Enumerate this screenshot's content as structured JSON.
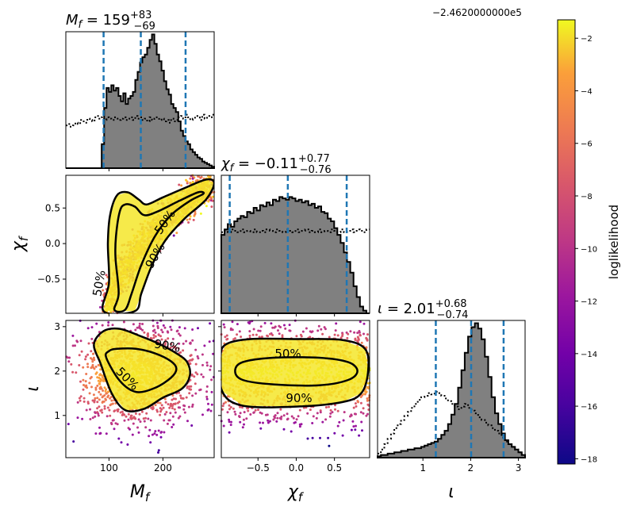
{
  "figure": {
    "offset_text": "−2.4620000000e5",
    "colorbar_label": "loglikelihood"
  },
  "chart_data": {
    "type": "corner",
    "parameters": [
      {
        "key": "Mf",
        "symbol": "M",
        "sub": "f",
        "range": [
          20,
          295
        ],
        "ticks": [
          100,
          200
        ],
        "tick_labels": [
          "100",
          "200"
        ],
        "median": "159",
        "plus": "+83",
        "minus": "−69",
        "quantiles": [
          90,
          159,
          242
        ],
        "title_prefix": "",
        "title_eq": " = "
      },
      {
        "key": "chif",
        "symbol": "χ",
        "sub": "f",
        "range": [
          -0.98,
          0.96
        ],
        "ticks": [
          -0.5,
          0.0,
          0.5
        ],
        "tick_labels": [
          "−0.5",
          "0.0",
          "0.5"
        ],
        "median": "−0.11",
        "plus": "+0.77",
        "minus": "−0.76",
        "quantiles": [
          -0.87,
          -0.11,
          0.66
        ],
        "title_prefix": "",
        "title_eq": " = "
      },
      {
        "key": "iota",
        "symbol": "ι",
        "sub": "",
        "range": [
          0.05,
          3.14
        ],
        "ticks": [
          1,
          2,
          3
        ],
        "tick_labels": [
          "1",
          "2",
          "3"
        ],
        "median": "2.01",
        "plus": "+0.68",
        "minus": "−0.74",
        "quantiles": [
          1.27,
          2.01,
          2.69
        ],
        "title_prefix": "",
        "title_eq": " = "
      }
    ],
    "histograms": [
      {
        "param": "Mf",
        "bins": [
          20,
          295
        ],
        "posterior": [
          0,
          0,
          0,
          0,
          0,
          0,
          0,
          0,
          0,
          0,
          0,
          0,
          0,
          0,
          0,
          0.18,
          0.45,
          0.6,
          0.57,
          0.62,
          0.58,
          0.6,
          0.54,
          0.5,
          0.56,
          0.48,
          0.52,
          0.54,
          0.57,
          0.66,
          0.72,
          0.79,
          0.83,
          0.85,
          0.9,
          0.96,
          1.0,
          0.93,
          0.85,
          0.8,
          0.73,
          0.65,
          0.59,
          0.55,
          0.48,
          0.45,
          0.42,
          0.35,
          0.28,
          0.24,
          0.2,
          0.18,
          0.14,
          0.12,
          0.1,
          0.08,
          0.07,
          0.05,
          0.04,
          0.03,
          0.02,
          0.01
        ],
        "prior": [
          0.32,
          0.33,
          0.31,
          0.32,
          0.34,
          0.33,
          0.36,
          0.35,
          0.34,
          0.37,
          0.36,
          0.35,
          0.38,
          0.39,
          0.37,
          0.38,
          0.36,
          0.38,
          0.37,
          0.36,
          0.38,
          0.37,
          0.36,
          0.37,
          0.38,
          0.36,
          0.37,
          0.38,
          0.36,
          0.39,
          0.37,
          0.38,
          0.36,
          0.37,
          0.35,
          0.38,
          0.36,
          0.37,
          0.38,
          0.36,
          0.37,
          0.35,
          0.36,
          0.34,
          0.37,
          0.35,
          0.36,
          0.38,
          0.39,
          0.37,
          0.4,
          0.38,
          0.36,
          0.37,
          0.39,
          0.38,
          0.36,
          0.4,
          0.37,
          0.39,
          0.38,
          0.4
        ]
      },
      {
        "param": "chif",
        "bins": [
          -0.98,
          0.96
        ],
        "posterior": [
          0.58,
          0.62,
          0.66,
          0.64,
          0.68,
          0.7,
          0.72,
          0.71,
          0.75,
          0.74,
          0.78,
          0.76,
          0.8,
          0.79,
          0.82,
          0.8,
          0.84,
          0.83,
          0.86,
          0.85,
          0.84,
          0.86,
          0.85,
          0.83,
          0.84,
          0.82,
          0.83,
          0.8,
          0.81,
          0.78,
          0.79,
          0.75,
          0.74,
          0.7,
          0.68,
          0.63,
          0.58,
          0.52,
          0.45,
          0.38,
          0.3,
          0.2,
          0.12,
          0.05,
          0.02,
          0
        ],
        "prior": [
          0.6,
          0.61,
          0.6,
          0.62,
          0.61,
          0.6,
          0.62,
          0.6,
          0.61,
          0.6,
          0.62,
          0.6,
          0.61,
          0.6,
          0.62,
          0.61,
          0.6,
          0.62,
          0.61,
          0.6,
          0.62,
          0.61,
          0.6,
          0.62,
          0.6,
          0.61,
          0.62,
          0.6,
          0.61,
          0.6,
          0.62,
          0.6,
          0.61,
          0.6,
          0.62,
          0.61,
          0.6,
          0.62,
          0.6,
          0.61,
          0.62,
          0.6,
          0.62,
          0.61,
          0.6,
          0.62
        ]
      },
      {
        "param": "iota",
        "bins": [
          0.05,
          3.14
        ],
        "posterior": [
          0.01,
          0.02,
          0.02,
          0.03,
          0.03,
          0.04,
          0.04,
          0.05,
          0.05,
          0.06,
          0.06,
          0.07,
          0.07,
          0.08,
          0.09,
          0.1,
          0.11,
          0.12,
          0.14,
          0.17,
          0.2,
          0.25,
          0.32,
          0.4,
          0.52,
          0.65,
          0.78,
          0.9,
          0.97,
          1.0,
          0.96,
          0.88,
          0.75,
          0.6,
          0.45,
          0.33,
          0.25,
          0.18,
          0.13,
          0.1,
          0.08,
          0.06,
          0.04,
          0.02
        ],
        "prior": [
          0.03,
          0.06,
          0.1,
          0.14,
          0.18,
          0.22,
          0.25,
          0.28,
          0.31,
          0.34,
          0.37,
          0.4,
          0.43,
          0.45,
          0.46,
          0.48,
          0.47,
          0.49,
          0.48,
          0.46,
          0.44,
          0.42,
          0.4,
          0.38,
          0.36,
          0.38,
          0.4,
          0.37,
          0.35,
          0.33,
          0.3,
          0.28,
          0.26,
          0.24,
          0.22,
          0.2,
          0.18,
          0.15,
          0.12,
          0.1,
          0.08,
          0.06,
          0.04,
          0.02
        ]
      }
    ],
    "contours": [
      {
        "x": "Mf",
        "y": "chif",
        "levels": [
          {
            "label": "50%",
            "points": [
              [
                110,
                -0.93
              ],
              [
                118,
                -0.7
              ],
              [
                112,
                -0.2
              ],
              [
                113,
                0.1
              ],
              [
                120,
                0.45
              ],
              [
                130,
                0.55
              ],
              [
                148,
                0.52
              ],
              [
                165,
                0.4
              ],
              [
                190,
                0.45
              ],
              [
                230,
                0.6
              ],
              [
                265,
                0.72
              ],
              [
                275,
                0.7
              ],
              [
                250,
                0.6
              ],
              [
                215,
                0.4
              ],
              [
                185,
                0.1
              ],
              [
                160,
                -0.3
              ],
              [
                142,
                -0.7
              ],
              [
                130,
                -0.93
              ]
            ]
          },
          {
            "label": "90%",
            "points": [
              [
                90,
                -0.95
              ],
              [
                100,
                -0.55
              ],
              [
                98,
                0.0
              ],
              [
                102,
                0.4
              ],
              [
                115,
                0.68
              ],
              [
                135,
                0.72
              ],
              [
                155,
                0.62
              ],
              [
                170,
                0.55
              ],
              [
                200,
                0.65
              ],
              [
                240,
                0.78
              ],
              [
                280,
                0.9
              ],
              [
                295,
                0.85
              ],
              [
                280,
                0.62
              ],
              [
                240,
                0.35
              ],
              [
                205,
                0.05
              ],
              [
                180,
                -0.3
              ],
              [
                160,
                -0.7
              ],
              [
                148,
                -0.95
              ]
            ]
          }
        ]
      },
      {
        "x": "Mf",
        "y": "iota",
        "levels": [
          {
            "label": "50%",
            "points": [
              [
                95,
                2.3
              ],
              [
                120,
                1.78
              ],
              [
                150,
                1.53
              ],
              [
                185,
                1.62
              ],
              [
                215,
                1.85
              ],
              [
                225,
                2.05
              ],
              [
                215,
                2.22
              ],
              [
                185,
                2.4
              ],
              [
                150,
                2.5
              ],
              [
                115,
                2.5
              ],
              [
                100,
                2.45
              ]
            ]
          },
          {
            "label": "90%",
            "points": [
              [
                72,
                2.6
              ],
              [
                85,
                2.15
              ],
              [
                105,
                1.5
              ],
              [
                130,
                1.12
              ],
              [
                165,
                1.15
              ],
              [
                200,
                1.4
              ],
              [
                235,
                1.6
              ],
              [
                250,
                1.9
              ],
              [
                245,
                2.2
              ],
              [
                225,
                2.4
              ],
              [
                195,
                2.6
              ],
              [
                160,
                2.78
              ],
              [
                120,
                2.95
              ],
              [
                90,
                2.9
              ]
            ]
          }
        ]
      },
      {
        "x": "chif",
        "y": "iota",
        "levels": [
          {
            "label": "50%",
            "points": [
              [
                -0.8,
                2.0
              ],
              [
                -0.7,
                1.8
              ],
              [
                -0.3,
                1.7
              ],
              [
                0.3,
                1.68
              ],
              [
                0.68,
                1.8
              ],
              [
                0.8,
                2.0
              ],
              [
                0.68,
                2.2
              ],
              [
                0.3,
                2.3
              ],
              [
                -0.3,
                2.3
              ],
              [
                -0.7,
                2.2
              ]
            ]
          },
          {
            "label": "90%",
            "points": [
              [
                -0.99,
                2.3
              ],
              [
                -0.97,
                1.55
              ],
              [
                -0.7,
                1.22
              ],
              [
                0.0,
                1.2
              ],
              [
                0.6,
                1.3
              ],
              [
                0.85,
                1.5
              ],
              [
                0.94,
                2.0
              ],
              [
                0.9,
                2.5
              ],
              [
                0.6,
                2.7
              ],
              [
                0.0,
                2.72
              ],
              [
                -0.6,
                2.72
              ],
              [
                -0.92,
                2.6
              ]
            ]
          }
        ]
      }
    ],
    "colorbar": {
      "range": [
        -18.2,
        -1.3
      ],
      "ticks": [
        -2,
        -4,
        -6,
        -8,
        -10,
        -12,
        -14,
        -16,
        -18
      ],
      "tick_labels": [
        "−2",
        "−4",
        "−6",
        "−8",
        "−10",
        "−12",
        "−14",
        "−16",
        "−18"
      ],
      "colormap": "plasma"
    },
    "colors": {
      "hist_fill": "#808080",
      "hist_edge": "#000000",
      "quantile": "#1f77b4",
      "prior": "#000000"
    }
  }
}
